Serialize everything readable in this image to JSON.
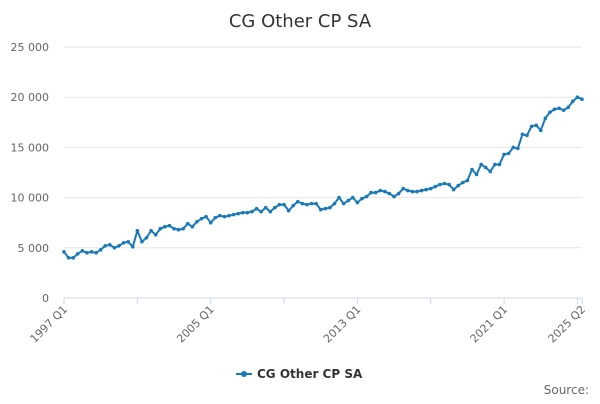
{
  "chart_data": {
    "type": "line",
    "title": "CG Other CP SA",
    "xlabel": "",
    "ylabel": "",
    "ylim": [
      0,
      25000
    ],
    "y_ticks": [
      0,
      5000,
      10000,
      15000,
      20000,
      25000
    ],
    "y_tick_labels": [
      "0",
      "5 000",
      "10 000",
      "15 000",
      "20 000",
      "25 000"
    ],
    "x_tick_labels": [
      "1997 Q1",
      "2005 Q1",
      "2013 Q1",
      "2021 Q1",
      "2025 Q2"
    ],
    "grid": "horizontal",
    "legend": "bottom-center",
    "color": "#1a7ab8",
    "series": [
      {
        "name": "CG Other CP SA",
        "x": [
          "1997 Q1",
          "1997 Q2",
          "1997 Q3",
          "1997 Q4",
          "1998 Q1",
          "1998 Q2",
          "1998 Q3",
          "1998 Q4",
          "1999 Q1",
          "1999 Q2",
          "1999 Q3",
          "1999 Q4",
          "2000 Q1",
          "2000 Q2",
          "2000 Q3",
          "2000 Q4",
          "2001 Q1",
          "2001 Q2",
          "2001 Q3",
          "2001 Q4",
          "2002 Q1",
          "2002 Q2",
          "2002 Q3",
          "2002 Q4",
          "2003 Q1",
          "2003 Q2",
          "2003 Q3",
          "2003 Q4",
          "2004 Q1",
          "2004 Q2",
          "2004 Q3",
          "2004 Q4",
          "2005 Q1",
          "2005 Q2",
          "2005 Q3",
          "2005 Q4",
          "2006 Q1",
          "2006 Q2",
          "2006 Q3",
          "2006 Q4",
          "2007 Q1",
          "2007 Q2",
          "2007 Q3",
          "2007 Q4",
          "2008 Q1",
          "2008 Q2",
          "2008 Q3",
          "2008 Q4",
          "2009 Q1",
          "2009 Q2",
          "2009 Q3",
          "2009 Q4",
          "2010 Q1",
          "2010 Q2",
          "2010 Q3",
          "2010 Q4",
          "2011 Q1",
          "2011 Q2",
          "2011 Q3",
          "2011 Q4",
          "2012 Q1",
          "2012 Q2",
          "2012 Q3",
          "2012 Q4",
          "2013 Q1",
          "2013 Q2",
          "2013 Q3",
          "2013 Q4",
          "2014 Q1",
          "2014 Q2",
          "2014 Q3",
          "2014 Q4",
          "2015 Q1",
          "2015 Q2",
          "2015 Q3",
          "2015 Q4",
          "2016 Q1",
          "2016 Q2",
          "2016 Q3",
          "2016 Q4",
          "2017 Q1",
          "2017 Q2",
          "2017 Q3",
          "2017 Q4",
          "2018 Q1",
          "2018 Q2",
          "2018 Q3",
          "2018 Q4",
          "2019 Q1",
          "2019 Q2",
          "2019 Q3",
          "2019 Q4",
          "2020 Q1",
          "2020 Q2",
          "2020 Q3",
          "2020 Q4",
          "2021 Q1",
          "2021 Q2",
          "2021 Q3",
          "2021 Q4",
          "2022 Q1",
          "2022 Q2",
          "2022 Q3",
          "2022 Q4",
          "2023 Q1",
          "2023 Q2",
          "2023 Q3",
          "2023 Q4",
          "2024 Q1",
          "2024 Q2",
          "2024 Q3",
          "2024 Q4",
          "2025 Q1",
          "2025 Q2"
        ],
        "values": [
          4600,
          4000,
          4000,
          4400,
          4700,
          4500,
          4600,
          4500,
          4800,
          5200,
          5300,
          5000,
          5200,
          5500,
          5600,
          5100,
          6700,
          5600,
          6000,
          6700,
          6300,
          6900,
          7100,
          7200,
          6900,
          6800,
          6900,
          7400,
          7100,
          7600,
          7900,
          8100,
          7500,
          8000,
          8200,
          8100,
          8200,
          8300,
          8400,
          8500,
          8500,
          8600,
          8900,
          8600,
          9000,
          8600,
          9000,
          9300,
          9300,
          8700,
          9200,
          9600,
          9400,
          9300,
          9400,
          9400,
          8800,
          8900,
          9000,
          9400,
          10000,
          9400,
          9700,
          10000,
          9500,
          9900,
          10100,
          10500,
          10500,
          10700,
          10600,
          10400,
          10100,
          10400,
          10900,
          10700,
          10600,
          10600,
          10700,
          10800,
          10900,
          11100,
          11300,
          11400,
          11300,
          10800,
          11200,
          11500,
          11700,
          12800,
          12300,
          13300,
          13000,
          12600,
          13300,
          13300,
          14300,
          14400,
          15000,
          14900,
          16300,
          16200,
          17100,
          17200,
          16700,
          17900,
          18500,
          18800,
          18900,
          18700,
          19000,
          19600,
          20000,
          19800
        ]
      }
    ]
  },
  "legend": {
    "label": "CG Other CP SA"
  },
  "source_text": "Source:"
}
